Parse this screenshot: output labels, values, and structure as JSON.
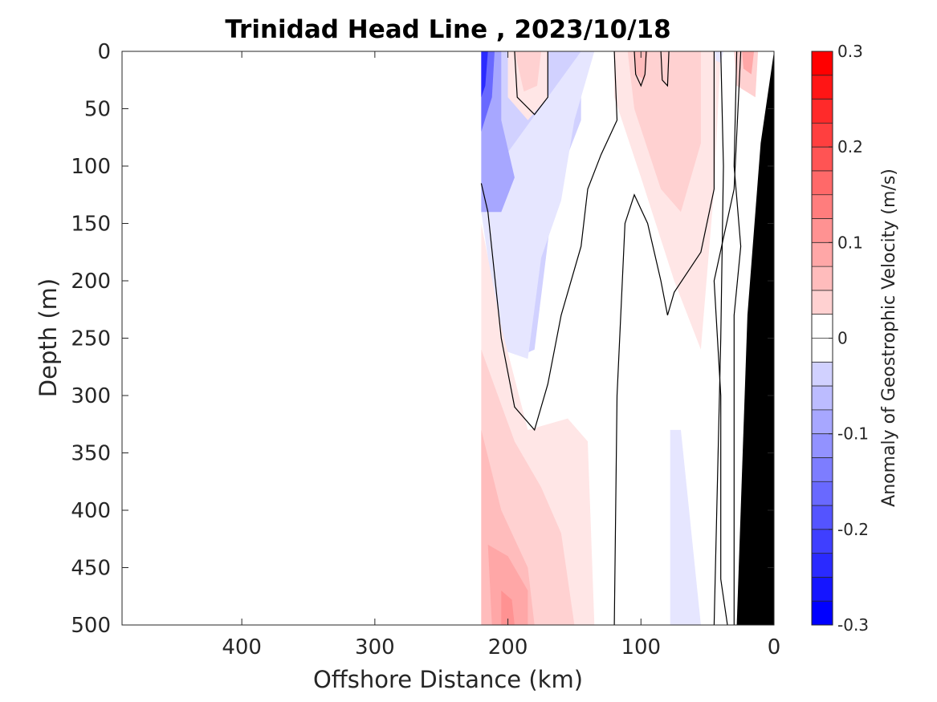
{
  "chart_data": {
    "type": "contour",
    "title": "Trinidad Head Line , 2023/10/18",
    "xlabel": "Offshore Distance (km)",
    "ylabel": "Depth (m)",
    "xlim": [
      490,
      0
    ],
    "ylim": [
      0,
      500
    ],
    "x_reversed": true,
    "y_reversed": true,
    "x_ticks": [
      400,
      300,
      200,
      100,
      0
    ],
    "y_ticks": [
      0,
      50,
      100,
      150,
      200,
      250,
      300,
      350,
      400,
      450,
      500
    ],
    "data_extent_km": [
      220,
      0
    ],
    "colorbar": {
      "label": "Anomaly of Geostrophic Velocity (m/s)",
      "min": -0.3,
      "max": 0.3,
      "step": 0.025,
      "ticks": [
        0.3,
        0.2,
        0.1,
        0,
        -0.1,
        -0.2,
        -0.3
      ],
      "tick_labels": [
        "0.3",
        "0.2",
        "0.1",
        "0",
        "-0.1",
        "-0.2",
        "-0.3"
      ],
      "colormap": "blue-white-red"
    },
    "regions": [
      {
        "name": "nearshore blue core",
        "value": -0.25,
        "x": [
          220,
          205
        ],
        "depth": [
          0,
          60
        ]
      },
      {
        "name": "offshore negative band",
        "value": -0.05,
        "x": [
          220,
          145
        ],
        "depth": [
          0,
          270
        ]
      },
      {
        "name": "upper positive cell",
        "value": 0.05,
        "x": [
          200,
          165
        ],
        "depth": [
          0,
          45
        ]
      },
      {
        "name": "deep positive flank",
        "value": 0.075,
        "x": [
          220,
          135
        ],
        "depth": [
          250,
          500
        ]
      },
      {
        "name": "deep positive core",
        "value": 0.125,
        "x": [
          210,
          180
        ],
        "depth": [
          430,
          500
        ]
      },
      {
        "name": "inshore positive band",
        "value": 0.05,
        "x": [
          115,
          50
        ],
        "depth": [
          0,
          260
        ]
      },
      {
        "name": "deep negative tongue",
        "value": -0.025,
        "x": [
          75,
          50
        ],
        "depth": [
          320,
          500
        ]
      },
      {
        "name": "shelf-edge positive cell",
        "value": 0.1,
        "x": [
          28,
          12
        ],
        "depth": [
          0,
          40
        ]
      }
    ],
    "bathymetry": {
      "color": "#000000",
      "depth_at_km": [
        [
          0,
          0
        ],
        [
          10,
          80
        ],
        [
          20,
          230
        ],
        [
          28,
          500
        ]
      ]
    },
    "zero_contour_color": "#000000"
  }
}
